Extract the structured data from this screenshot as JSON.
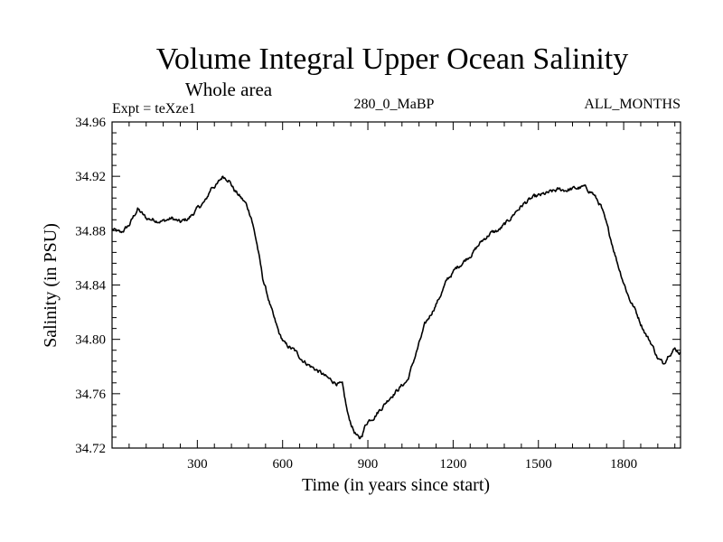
{
  "chart_data": {
    "type": "line",
    "title": "Volume Integral Upper Ocean Salinity",
    "subtitle": "Whole area",
    "expt_label": "Expt = teXze1",
    "center_label": "280_0_MaBP",
    "right_label": "ALL_MONTHS",
    "xlabel": "Time (in years since start)",
    "ylabel": "Salinity (in PSU)",
    "xlim": [
      0,
      2000
    ],
    "ylim": [
      34.72,
      34.96
    ],
    "xticks": [
      300,
      600,
      900,
      1200,
      1500,
      1800
    ],
    "xtick_labels": [
      "300",
      "600",
      "900",
      "1200",
      "1500",
      "1800"
    ],
    "yticks": [
      34.72,
      34.76,
      34.8,
      34.84,
      34.88,
      34.92,
      34.96
    ],
    "ytick_labels": [
      "34.72",
      "34.76",
      "34.80",
      "34.84",
      "34.88",
      "34.92",
      "34.96"
    ],
    "color": "#000000",
    "series": [
      {
        "name": "salinity",
        "x": [
          0,
          30,
          60,
          90,
          120,
          150,
          180,
          210,
          240,
          270,
          300,
          330,
          350,
          370,
          390,
          410,
          430,
          450,
          470,
          490,
          510,
          530,
          550,
          570,
          590,
          610,
          640,
          670,
          700,
          730,
          760,
          790,
          810,
          820,
          830,
          850,
          870,
          880,
          890,
          900,
          920,
          950,
          980,
          1010,
          1040,
          1070,
          1100,
          1130,
          1150,
          1180,
          1210,
          1240,
          1270,
          1300,
          1330,
          1360,
          1390,
          1420,
          1450,
          1480,
          1510,
          1540,
          1570,
          1600,
          1630,
          1660,
          1690,
          1720,
          1740,
          1760,
          1780,
          1800,
          1820,
          1840,
          1860,
          1880,
          1900,
          1920,
          1940,
          1960,
          1980,
          2000
        ],
        "y": [
          34.881,
          34.878,
          34.884,
          34.896,
          34.889,
          34.888,
          34.887,
          34.889,
          34.886,
          34.889,
          34.896,
          34.902,
          34.912,
          34.914,
          34.92,
          34.918,
          34.91,
          34.905,
          34.9,
          34.89,
          34.87,
          34.845,
          34.83,
          34.815,
          34.803,
          34.796,
          34.792,
          34.785,
          34.78,
          34.776,
          34.771,
          34.768,
          34.766,
          34.755,
          34.744,
          34.733,
          34.726,
          34.73,
          34.736,
          34.74,
          34.743,
          34.75,
          34.758,
          34.764,
          34.77,
          34.79,
          34.81,
          34.822,
          34.83,
          34.844,
          34.852,
          34.858,
          34.864,
          34.872,
          34.878,
          34.88,
          34.886,
          34.894,
          34.9,
          34.904,
          34.906,
          34.908,
          34.91,
          34.91,
          34.911,
          34.912,
          34.908,
          34.898,
          34.884,
          34.87,
          34.855,
          34.842,
          34.83,
          34.822,
          34.812,
          34.803,
          34.796,
          34.786,
          34.782,
          34.79,
          34.793,
          34.79
        ]
      }
    ]
  }
}
